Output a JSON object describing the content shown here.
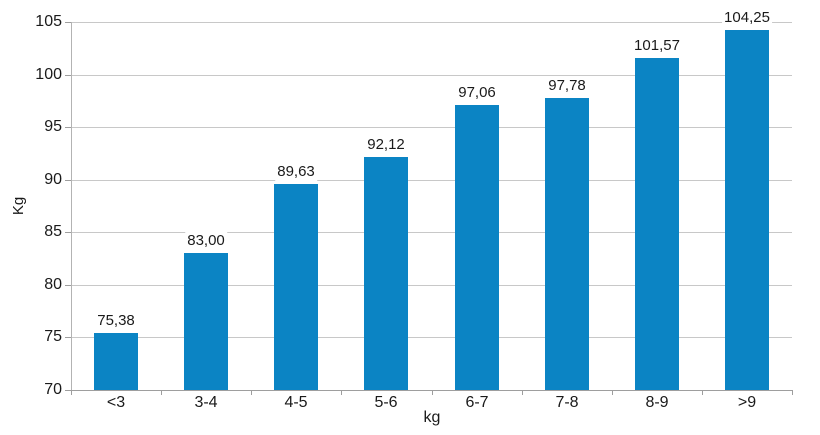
{
  "chart_data": {
    "type": "bar",
    "title": "",
    "xlabel": "kg",
    "ylabel": "Kg",
    "categories": [
      "<3",
      "3-4",
      "4-5",
      "5-6",
      "6-7",
      "7-8",
      "8-9",
      ">9"
    ],
    "values": [
      75.38,
      83.0,
      89.63,
      92.12,
      97.06,
      97.78,
      101.57,
      104.25
    ],
    "value_labels": [
      "75,38",
      "83,00",
      "89,63",
      "92,12",
      "97,06",
      "97,78",
      "101,57",
      "104,25"
    ],
    "ylim": [
      70,
      105
    ],
    "ytick_values": [
      70,
      75,
      80,
      85,
      90,
      95,
      100,
      105
    ],
    "ytick_labels": [
      "70",
      "75",
      "80",
      "85",
      "90",
      "95",
      "100",
      "105"
    ],
    "grid": "horizontal",
    "legend": "none",
    "bar_color": "#0b84c4",
    "gridline_color": "#c8c8c8",
    "axis_color": "#9e9e9e",
    "text_color": "#1a1a1a",
    "background_color": "#ffffff"
  }
}
